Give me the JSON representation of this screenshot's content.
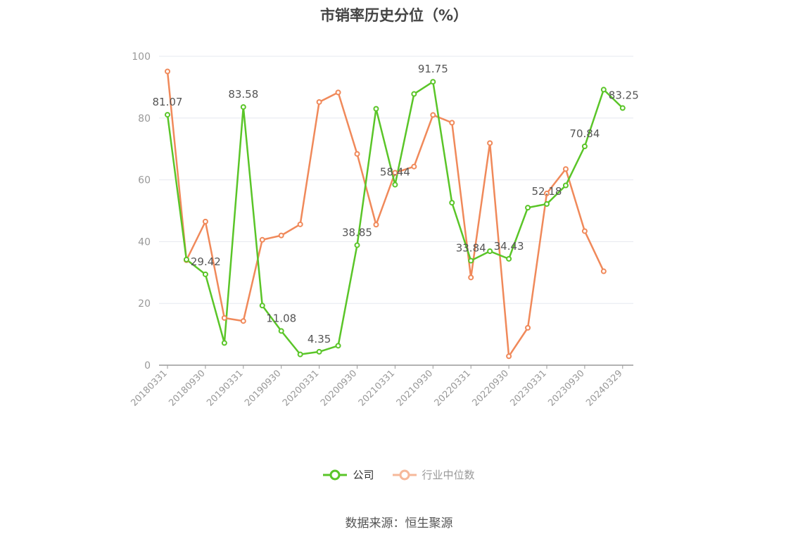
{
  "chart_data": {
    "type": "line",
    "title": "市销率历史分位（%）",
    "ylim": [
      0,
      100
    ],
    "yticks": [
      0,
      20,
      40,
      60,
      80,
      100
    ],
    "x_tick_labels": [
      "20180331",
      "20180930",
      "20190331",
      "20190930",
      "20200331",
      "20200930",
      "20210331",
      "20210930",
      "20220331",
      "20220930",
      "20230331",
      "20230930",
      "20240329"
    ],
    "grid": true,
    "legend_placement": "bottom",
    "series": [
      {
        "name": "公司",
        "color": "#5ac528",
        "values": [
          81.07,
          34.2,
          29.42,
          7.2,
          83.58,
          19.3,
          11.08,
          3.5,
          4.35,
          6.3,
          38.85,
          83.0,
          58.44,
          87.8,
          91.75,
          52.6,
          33.84,
          36.9,
          34.43,
          51.0,
          52.18,
          58.2,
          70.84,
          89.2,
          83.25
        ],
        "labels": {
          "0": "81.07",
          "2": "29.42",
          "4": "83.58",
          "6": "11.08",
          "8": "4.35",
          "10": "38.85",
          "12": "58.44",
          "14": "91.75",
          "16": "33.84",
          "18": "34.43",
          "20": "52.18",
          "22": "70.84",
          "24": "83.25"
        }
      },
      {
        "name": "行业中位数",
        "color": "#f0895a",
        "values": [
          95.1,
          34.0,
          46.5,
          15.3,
          14.3,
          40.6,
          42.0,
          45.6,
          85.2,
          88.3,
          68.4,
          45.5,
          62.3,
          64.3,
          81.0,
          78.5,
          28.4,
          71.9,
          2.9,
          12.1,
          55.6,
          63.5,
          43.4,
          30.4,
          null
        ]
      }
    ]
  },
  "legend": {
    "company": "公司",
    "industry": "行业中位数"
  },
  "source": "数据来源：恒生聚源"
}
